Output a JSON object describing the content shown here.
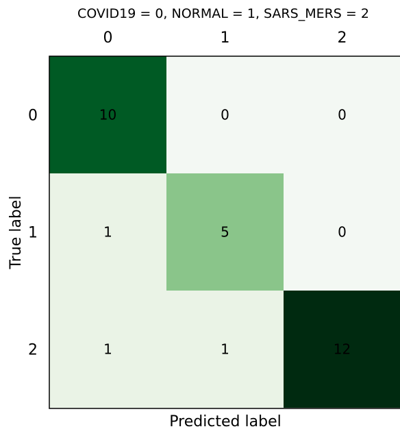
{
  "chart_data": {
    "type": "heatmap",
    "title": "COVID19 = 0, NORMAL = 1, SARS_MERS = 2",
    "xlabel": "Predicted label",
    "ylabel": "True label",
    "x_tick_labels": [
      "0",
      "1",
      "2"
    ],
    "y_tick_labels": [
      "0",
      "1",
      "2"
    ],
    "x_ticks_position": "top",
    "colormap": "Greens",
    "color_range": [
      0,
      12
    ],
    "matrix": [
      [
        10,
        0,
        0
      ],
      [
        1,
        5,
        0
      ],
      [
        1,
        1,
        12
      ]
    ],
    "cell_colors": [
      [
        "#005a24",
        "#f3f8f3",
        "#f3f8f3"
      ],
      [
        "#eaf3e6",
        "#8ac58a",
        "#f3f8f3"
      ],
      [
        "#eaf3e6",
        "#eaf3e6",
        "#002a10"
      ]
    ],
    "annotation_color": "#000000",
    "grid": false
  }
}
